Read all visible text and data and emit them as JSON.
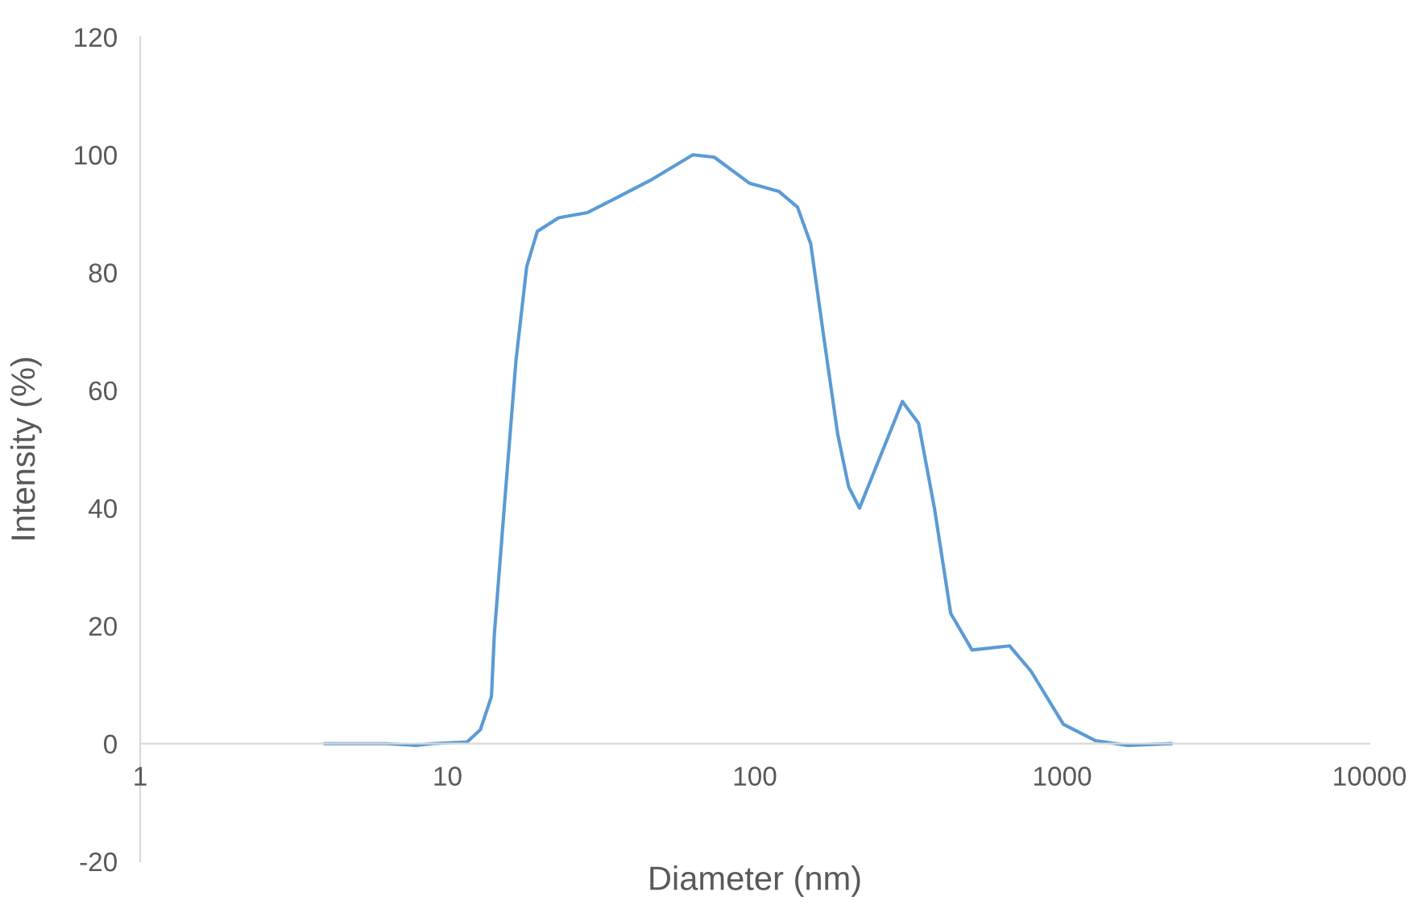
{
  "chart_data": {
    "type": "line",
    "xlabel": "Diameter (nm)",
    "ylabel": "Intensity (%)",
    "log": "x",
    "xlim": [
      1,
      10000
    ],
    "xticks": [
      1,
      10,
      100,
      1000,
      10000
    ],
    "ylim": [
      -20,
      120
    ],
    "yticks": [
      -20,
      0,
      20,
      40,
      60,
      80,
      100,
      120
    ],
    "grid": false,
    "legend": false,
    "marker": "none",
    "line_style": "solid",
    "series": [
      {
        "color": "#5b9bd5",
        "x": [
          4,
          6.3,
          7.9,
          8.9,
          11.6,
          12.8,
          13.9,
          14.2,
          15.4,
          16.7,
          18.1,
          19.6,
          23,
          28.6,
          45.5,
          62.9,
          73.8,
          95.9,
          119.7,
          137.7,
          152,
          168,
          186,
          202,
          219,
          257,
          302,
          341,
          384,
          434,
          509,
          675,
          792,
          1009,
          1285,
          1636,
          2258
        ],
        "values": [
          0,
          0,
          -0.3,
          0,
          0.3,
          2.4,
          8,
          18.5,
          42,
          65,
          81,
          87,
          89.3,
          90.2,
          95.6,
          100,
          99.6,
          95.2,
          93.8,
          91.1,
          84.9,
          68.7,
          52.6,
          43.6,
          40,
          49,
          58.1,
          54.4,
          40,
          22.1,
          15.9,
          16.6,
          12.3,
          3.3,
          0.5,
          -0.3,
          0
        ]
      }
    ]
  }
}
